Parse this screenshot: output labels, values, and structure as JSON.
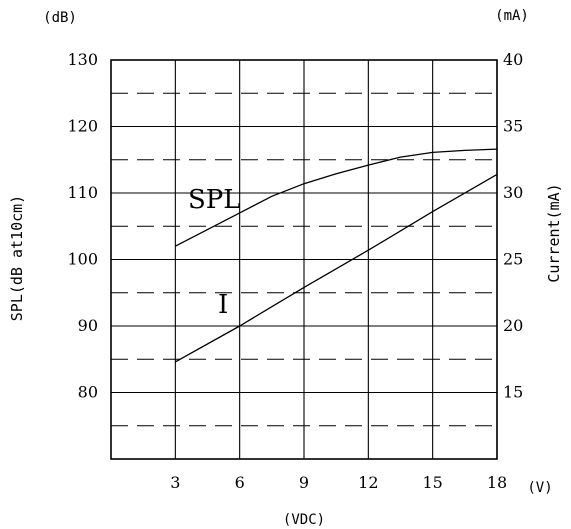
{
  "chart_data": {
    "type": "line",
    "x": [
      3,
      6,
      9,
      12,
      15,
      18
    ],
    "xlabel": "(VDC)",
    "x_unit": "(V)",
    "xlim": [
      0,
      18
    ],
    "x_ticks": [
      "3",
      "6",
      "9",
      "12",
      "15",
      "18"
    ],
    "y_left": {
      "label": "SPL(dB at10cm)",
      "unit": "(dB)",
      "lim": [
        70,
        130
      ],
      "ticks": [
        "80",
        "90",
        "100",
        "110",
        "120",
        "130"
      ],
      "tick_values": [
        80,
        90,
        100,
        110,
        120,
        130
      ]
    },
    "y_right": {
      "label": "Current(mA)",
      "unit": "(mA)",
      "lim": [
        10,
        40
      ],
      "ticks": [
        "15",
        "20",
        "25",
        "30",
        "35",
        "40"
      ],
      "tick_values": [
        15,
        20,
        25,
        30,
        35,
        40
      ]
    },
    "grid": true,
    "series": [
      {
        "name": "SPL",
        "axis": "left",
        "x": [
          3,
          4.5,
          6,
          7.5,
          9,
          10.5,
          12,
          13.5,
          15,
          16.5,
          18
        ],
        "values": [
          102,
          104.5,
          107,
          109.5,
          111.4,
          112.9,
          114.2,
          115.4,
          116.1,
          116.4,
          116.6
        ]
      },
      {
        "name": "I",
        "axis": "right",
        "x": [
          3,
          6,
          9,
          12,
          15,
          18
        ],
        "values": [
          17.3,
          20.0,
          22.9,
          25.7,
          28.6,
          31.4
        ]
      }
    ]
  }
}
